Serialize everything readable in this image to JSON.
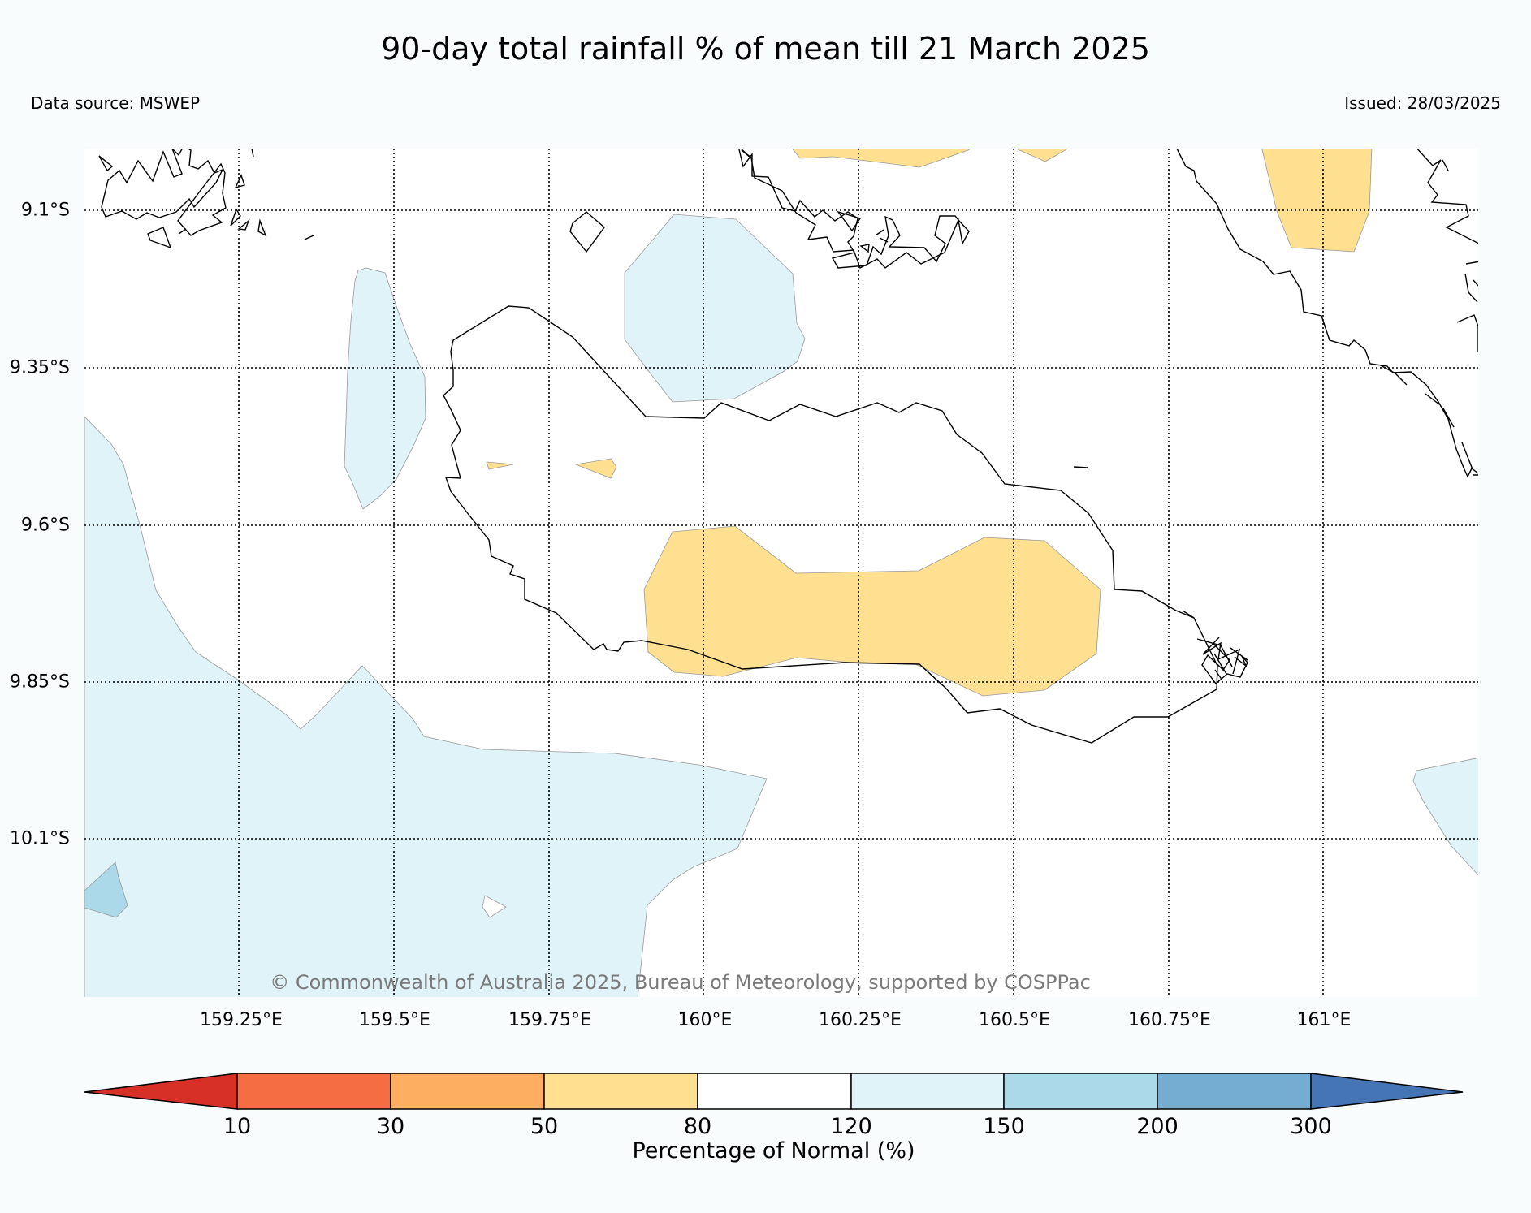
{
  "title": "90-day total rainfall % of mean till 21 March 2025",
  "data_source": "Data source: MSWEP",
  "issued": "Issued: 28/03/2025",
  "copyright": "© Commonwealth of Australia 2025, Bureau of Meteorology, supported by COSPPac",
  "latitude_labels": [
    "9.1°S",
    "9.35°S",
    "9.6°S",
    "9.85°S",
    "10.1°S"
  ],
  "longitude_labels": [
    "159.25°E",
    "159.5°E",
    "159.75°E",
    "160°E",
    "160.25°E",
    "160.5°E",
    "160.75°E",
    "161°E"
  ],
  "colorbar": {
    "title": "Percentage of Normal (%)",
    "tick_labels": [
      "10",
      "30",
      "50",
      "80",
      "120",
      "150",
      "200",
      "300"
    ],
    "colors": [
      "#d73027",
      "#f46d43",
      "#fdae61",
      "#fee090",
      "#ffffff",
      "#e0f3f8",
      "#abd9e9",
      "#74add1",
      "#4575b4"
    ]
  },
  "legend_colors": {
    "below_normal_50_80": "#fee090",
    "above_normal_120_150": "#e0f3f8",
    "above_normal_150_200": "#abd9e9"
  }
}
